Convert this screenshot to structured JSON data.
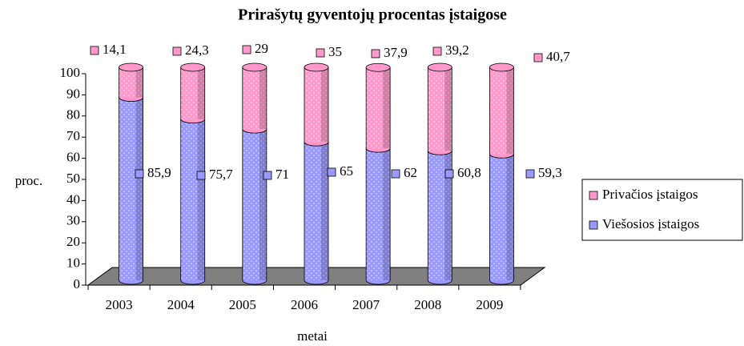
{
  "chart_data": {
    "type": "bar",
    "stacked": true,
    "title": "Prirašytų gyventojų procentas įstaigose",
    "y_label": "proc.",
    "x_label": "metai",
    "categories": [
      "2003",
      "2004",
      "2005",
      "2006",
      "2007",
      "2008",
      "2009"
    ],
    "series": [
      {
        "name": "Viešosios įstaigos",
        "color": "#9999ff",
        "values": [
          85.9,
          75.7,
          71,
          65,
          62,
          60.8,
          59.3
        ],
        "value_labels": [
          "85,9",
          "75,7",
          "71",
          "65",
          "62",
          "60,8",
          "59,3"
        ]
      },
      {
        "name": "Privačios įstaigos",
        "color": "#ff99cc",
        "values": [
          14.1,
          24.3,
          29,
          35,
          37.9,
          39.2,
          40.7
        ],
        "value_labels": [
          "14,1",
          "24,3",
          "29",
          "35",
          "37,9",
          "39,2",
          "40,7"
        ]
      }
    ],
    "ylim": [
      0,
      100
    ],
    "yticks": [
      0,
      10,
      20,
      30,
      40,
      50,
      60,
      70,
      80,
      90,
      100
    ],
    "legend": "right"
  }
}
